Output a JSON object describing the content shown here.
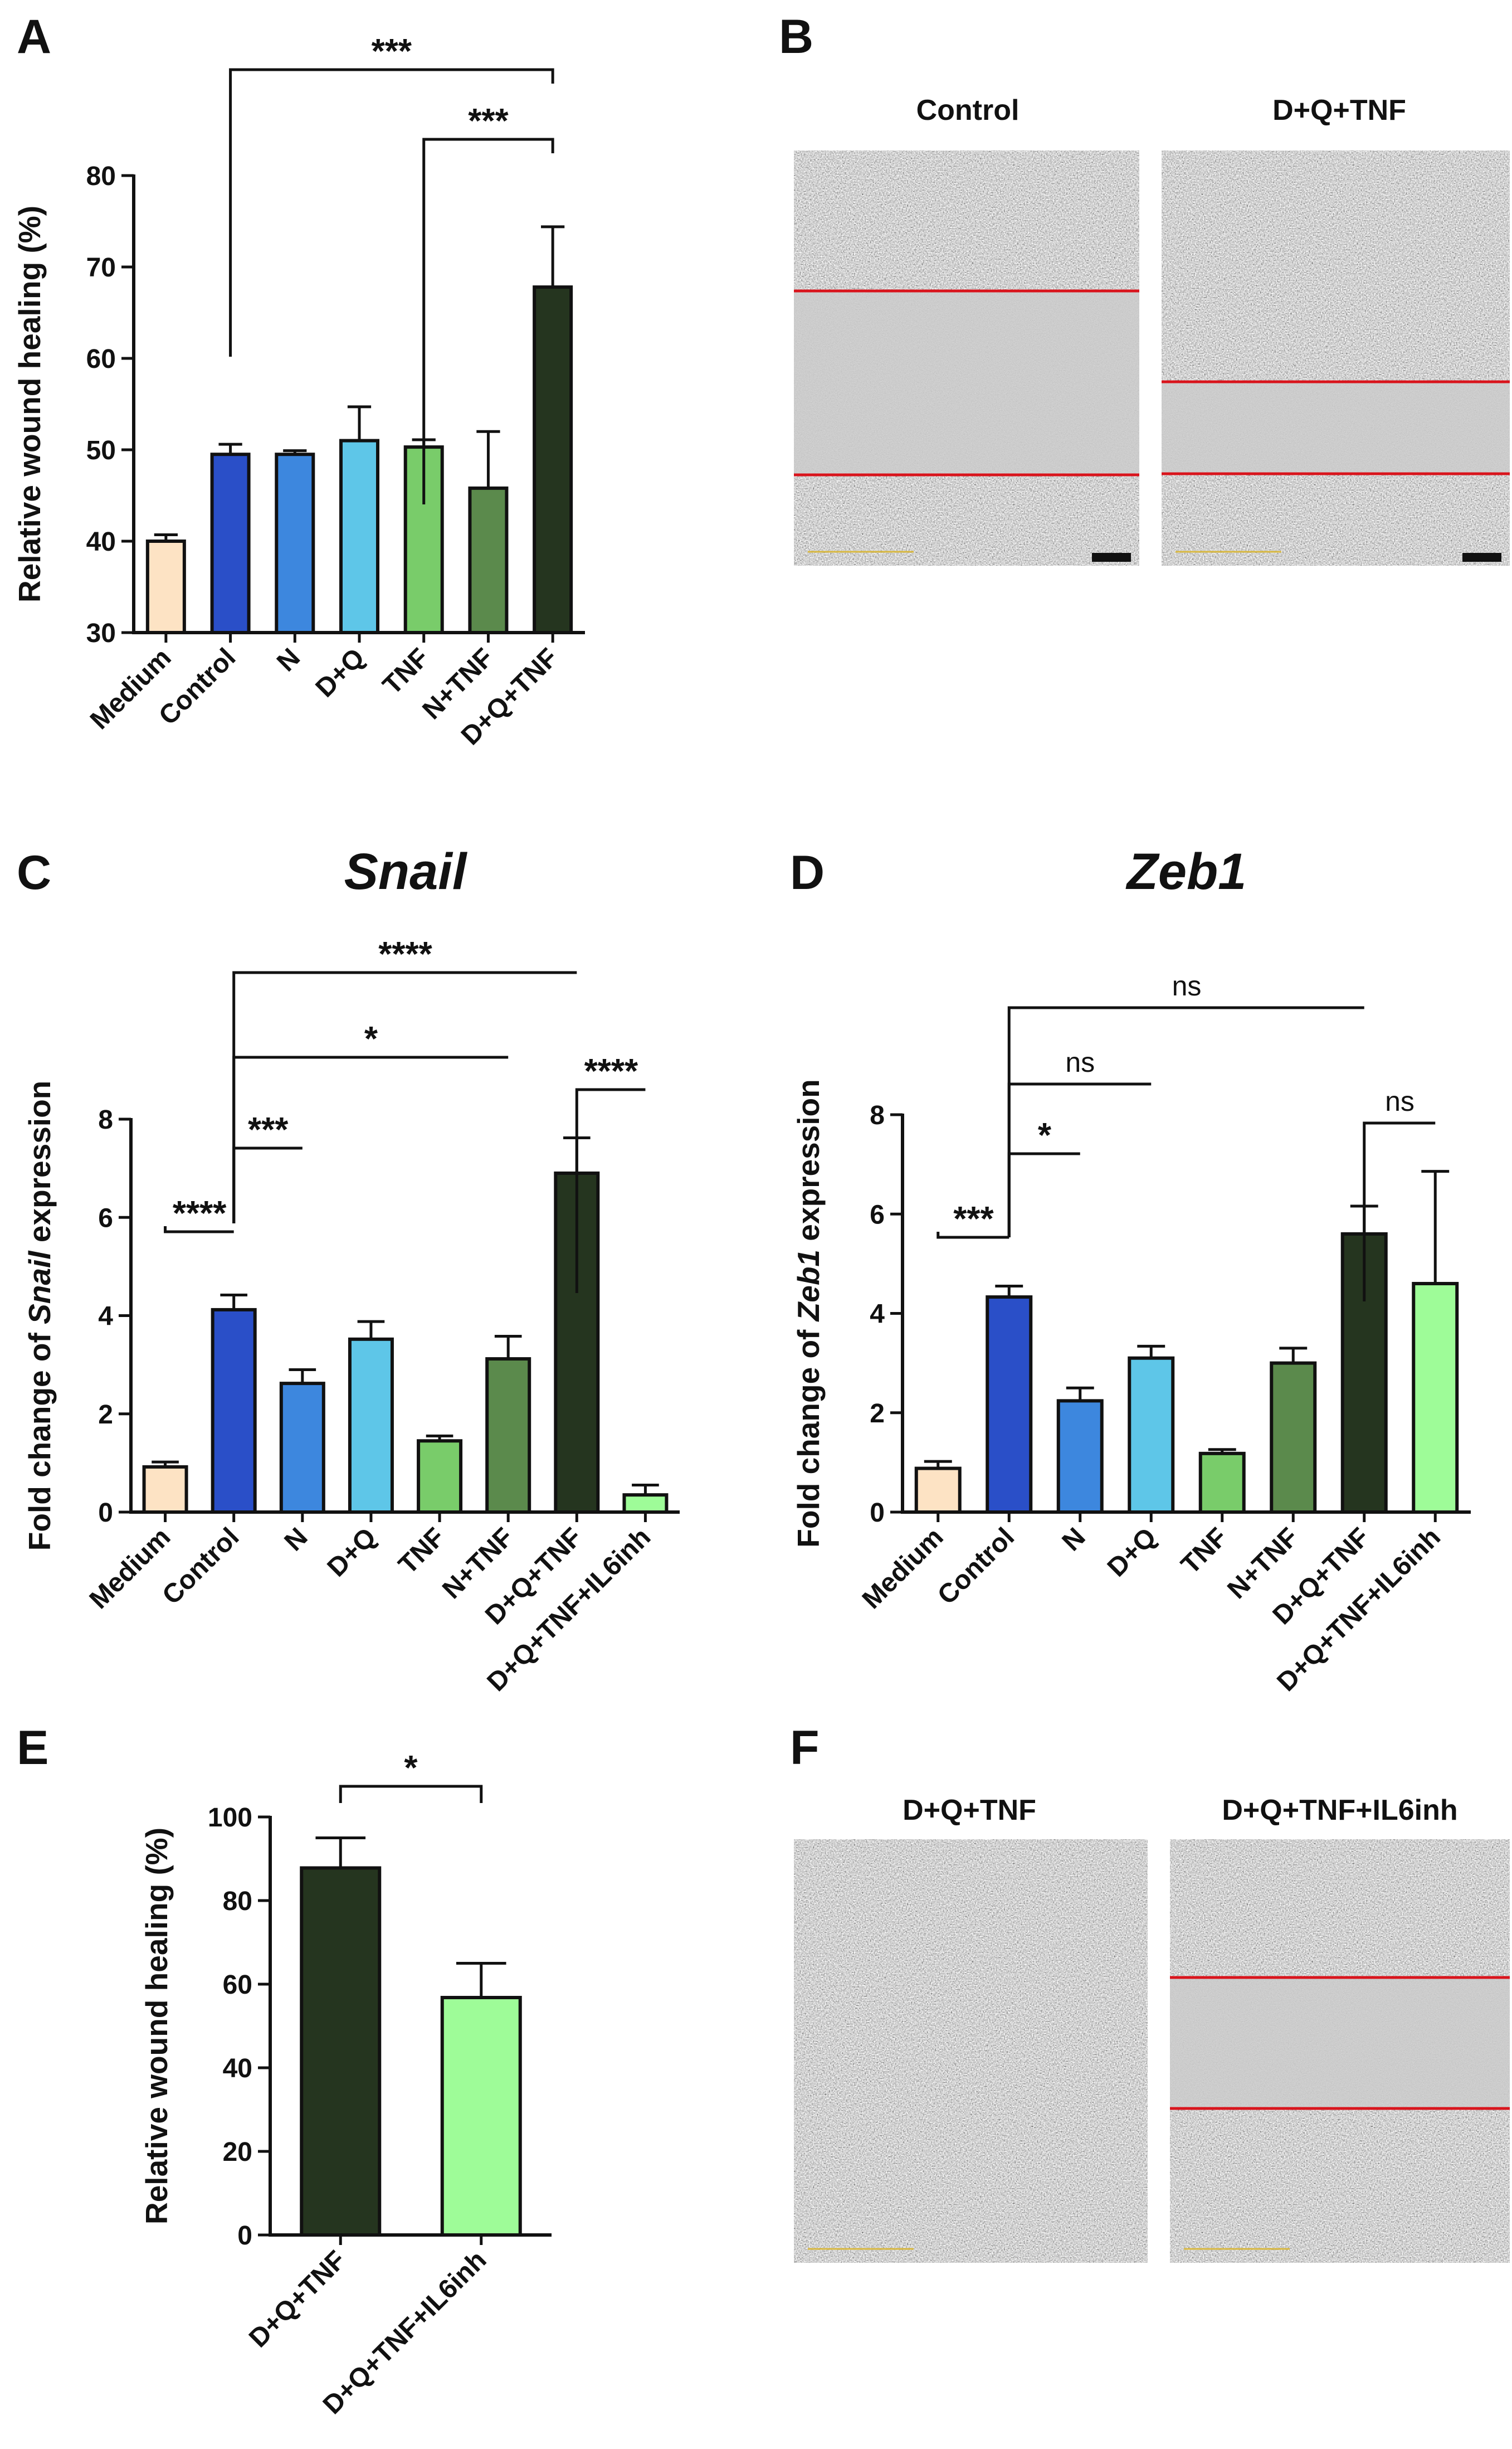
{
  "panels": {
    "A": "A",
    "B": "B",
    "C": "C",
    "D": "D",
    "E": "E",
    "F": "F"
  },
  "colors": {
    "Medium": "#fde3c4",
    "Control": "#2a4fc8",
    "N": "#3d87de",
    "D+Q": "#5ec6e8",
    "TNF": "#79cc6a",
    "N+TNF": "#5b8a4c",
    "D+Q+TNF": "#25351f",
    "IL6inh": "#9efc98",
    "redline": "#d9141c",
    "scalebar": "#d8b840"
  },
  "chart_data": [
    {
      "id": "A",
      "type": "bar",
      "title": "",
      "ylabel": "Relative wound healing (%)",
      "ylabel_parts": [
        {
          "t": "Relative wound healing (%)",
          "i": false
        }
      ],
      "ylim": [
        30,
        80
      ],
      "yticks": [
        30,
        40,
        50,
        60,
        70,
        80
      ],
      "categories": [
        "Medium",
        "Control",
        "N",
        "D+Q",
        "TNF",
        "N+TNF",
        "D+Q+TNF"
      ],
      "values": [
        40,
        49.5,
        49.5,
        51,
        50.3,
        45.8,
        67.8
      ],
      "errors": [
        0.7,
        1.1,
        0.4,
        3.7,
        0.8,
        6.2,
        6.6
      ],
      "colorKeys": [
        "Medium",
        "Control",
        "N",
        "D+Q",
        "TNF",
        "N+TNF",
        "D+Q+TNF"
      ],
      "significance": [
        {
          "from": 1,
          "to": 6,
          "label": "***"
        },
        {
          "from": 4,
          "to": 6,
          "label": "***"
        }
      ]
    },
    {
      "id": "C",
      "type": "bar",
      "title": "Snail",
      "ylabel": "Fold change of Snail expression",
      "ylabel_parts": [
        {
          "t": "Fold change of ",
          "i": false
        },
        {
          "t": "Snail",
          "i": true
        },
        {
          "t": " expression",
          "i": false
        }
      ],
      "ylim": [
        0,
        8
      ],
      "yticks": [
        0,
        2,
        4,
        6,
        8
      ],
      "categories": [
        "Medium",
        "Control",
        "N",
        "D+Q",
        "TNF",
        "N+TNF",
        "D+Q+TNF",
        "D+Q+TNF+IL6inh"
      ],
      "values": [
        0.92,
        4.12,
        2.62,
        3.52,
        1.45,
        3.12,
        6.9,
        0.35
      ],
      "errors": [
        0.1,
        0.3,
        0.28,
        0.36,
        0.1,
        0.46,
        0.72,
        0.2
      ],
      "colorKeys": [
        "Medium",
        "Control",
        "N",
        "D+Q",
        "TNF",
        "N+TNF",
        "D+Q+TNF",
        "IL6inh"
      ],
      "significance": [
        {
          "from": 1,
          "to": 6,
          "label": "****"
        },
        {
          "from": 1,
          "to": 5,
          "label": "*"
        },
        {
          "from": 1,
          "to": 2,
          "label": "***"
        },
        {
          "from": 0,
          "to": 1,
          "label": "****"
        },
        {
          "from": 6,
          "to": 7,
          "label": "****"
        }
      ]
    },
    {
      "id": "D",
      "type": "bar",
      "title": "Zeb1",
      "ylabel": "Fold change of Zeb1 expression",
      "ylabel_parts": [
        {
          "t": "Fold change of ",
          "i": false
        },
        {
          "t": "Zeb1",
          "i": true
        },
        {
          "t": " expression",
          "i": false
        }
      ],
      "ylim": [
        0,
        8
      ],
      "yticks": [
        0,
        2,
        4,
        6,
        8
      ],
      "categories": [
        "Medium",
        "Control",
        "N",
        "D+Q",
        "TNF",
        "N+TNF",
        "D+Q+TNF",
        "D+Q+TNF+IL6inh"
      ],
      "values": [
        0.88,
        4.33,
        2.24,
        3.1,
        1.18,
        3.0,
        5.6,
        4.6
      ],
      "errors": [
        0.14,
        0.22,
        0.26,
        0.24,
        0.08,
        0.3,
        0.56,
        2.26
      ],
      "colorKeys": [
        "Medium",
        "Control",
        "N",
        "D+Q",
        "TNF",
        "N+TNF",
        "D+Q+TNF",
        "IL6inh"
      ],
      "significance": [
        {
          "from": 1,
          "to": 6,
          "label": "ns"
        },
        {
          "from": 1,
          "to": 3,
          "label": "ns"
        },
        {
          "from": 1,
          "to": 2,
          "label": "*"
        },
        {
          "from": 0,
          "to": 1,
          "label": "***"
        },
        {
          "from": 6,
          "to": 7,
          "label": "ns"
        }
      ]
    },
    {
      "id": "E",
      "type": "bar",
      "title": "",
      "ylabel": "Relative wound healing (%)",
      "ylabel_parts": [
        {
          "t": "Relative wound healing (%)",
          "i": false
        }
      ],
      "ylim": [
        0,
        100
      ],
      "yticks": [
        0,
        20,
        40,
        60,
        80,
        100
      ],
      "categories": [
        "D+Q+TNF",
        "D+Q+TNF+IL6inh"
      ],
      "values": [
        87.8,
        56.8
      ],
      "errors": [
        7.2,
        8.2
      ],
      "colorKeys": [
        "D+Q+TNF",
        "IL6inh"
      ],
      "significance": [
        {
          "from": 0,
          "to": 1,
          "label": "*"
        }
      ]
    }
  ],
  "micrographs": {
    "B": {
      "left_label": "Control",
      "right_label": "D+Q+TNF"
    },
    "F": {
      "left_label": "D+Q+TNF",
      "right_label": "D+Q+TNF+IL6inh"
    }
  }
}
